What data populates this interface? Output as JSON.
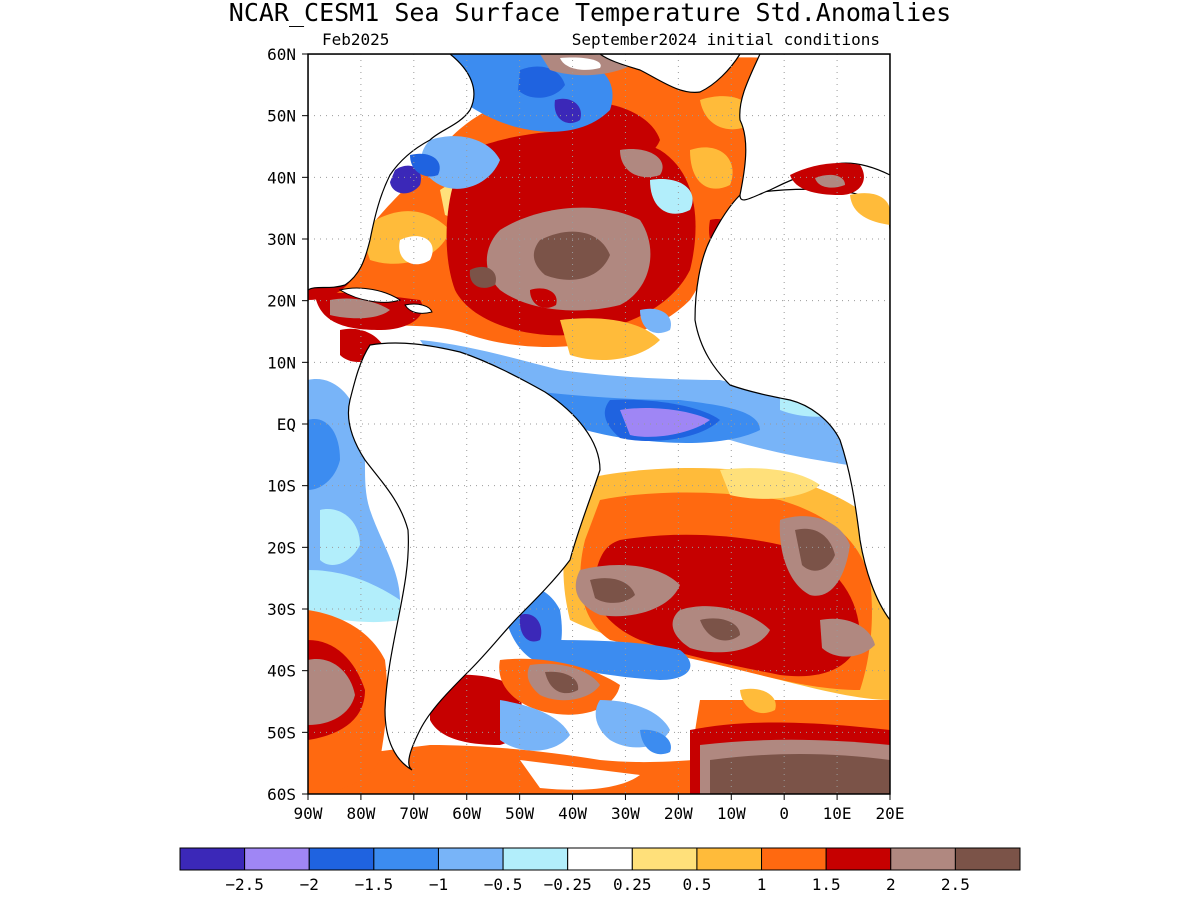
{
  "title": "NCAR_CESM1 Sea Surface Temperature Std.Anomalies",
  "valid_month": "Feb2025",
  "initial_conditions": "September2024 initial conditions",
  "lat_labels": [
    "60N",
    "50N",
    "40N",
    "30N",
    "20N",
    "10N",
    "EQ",
    "10S",
    "20S",
    "30S",
    "40S",
    "50S",
    "60S"
  ],
  "lon_labels": [
    "90W",
    "80W",
    "70W",
    "60W",
    "50W",
    "40W",
    "30W",
    "20W",
    "10W",
    "0",
    "10E",
    "20E"
  ],
  "colorbar": {
    "colors": [
      "#3b28b8",
      "#9f86f5",
      "#1f63e0",
      "#3c8cf0",
      "#78b4f8",
      "#b2eefb",
      "#ffffff",
      "#ffe07a",
      "#ffbb3a",
      "#ff6910",
      "#c60000",
      "#b08880",
      "#7b5348"
    ],
    "labels": [
      "−2.5",
      "−2",
      "−1.5",
      "−1",
      "−0.5",
      "−0.25",
      "0.25",
      "0.5",
      "1",
      "1.5",
      "2",
      "2.5"
    ]
  }
}
